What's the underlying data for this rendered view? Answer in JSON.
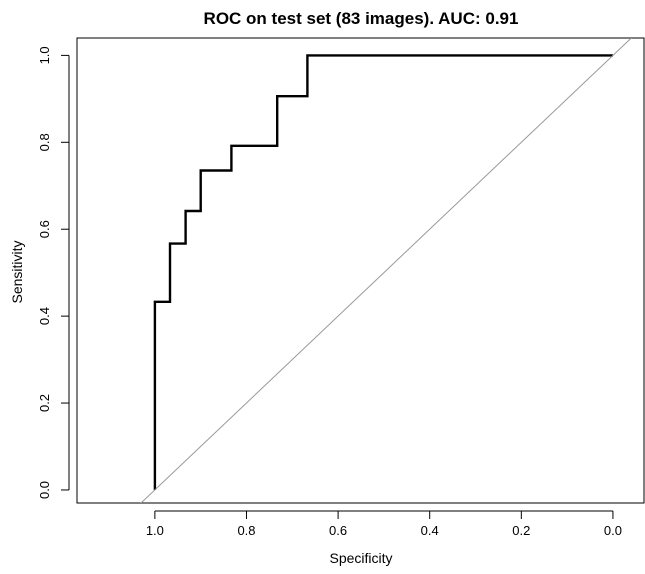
{
  "chart_data": {
    "type": "line",
    "title": "ROC on test set (83 images). AUC: 0.91",
    "xlabel": "Specificity",
    "ylabel": "Sensitivity",
    "x_axis_reversed": true,
    "xlim": [
      1.17,
      -0.07
    ],
    "ylim": [
      -0.03,
      1.04
    ],
    "x_ticks": [
      1.0,
      0.8,
      0.6,
      0.4,
      0.2,
      0.0
    ],
    "x_tick_labels": [
      "1.0",
      "0.8",
      "0.6",
      "0.4",
      "0.2",
      "0.0"
    ],
    "y_ticks": [
      0.0,
      0.2,
      0.4,
      0.6,
      0.8,
      1.0
    ],
    "y_tick_labels": [
      "0.0",
      "0.2",
      "0.4",
      "0.6",
      "0.8",
      "1.0"
    ],
    "grid": false,
    "series": [
      {
        "x": [
          1.0,
          1.0,
          0.967,
          0.967,
          0.933,
          0.933,
          0.9,
          0.9,
          0.833,
          0.833,
          0.733,
          0.733,
          0.667,
          0.667,
          0.0
        ],
        "y": [
          0.0,
          0.433,
          0.433,
          0.567,
          0.567,
          0.642,
          0.642,
          0.735,
          0.735,
          0.792,
          0.792,
          0.906,
          0.906,
          1.0,
          1.0
        ],
        "color": "#000000"
      },
      {
        "x": [
          1.04,
          -0.04
        ],
        "y": [
          -0.04,
          1.04
        ],
        "color": "#999999"
      }
    ]
  }
}
